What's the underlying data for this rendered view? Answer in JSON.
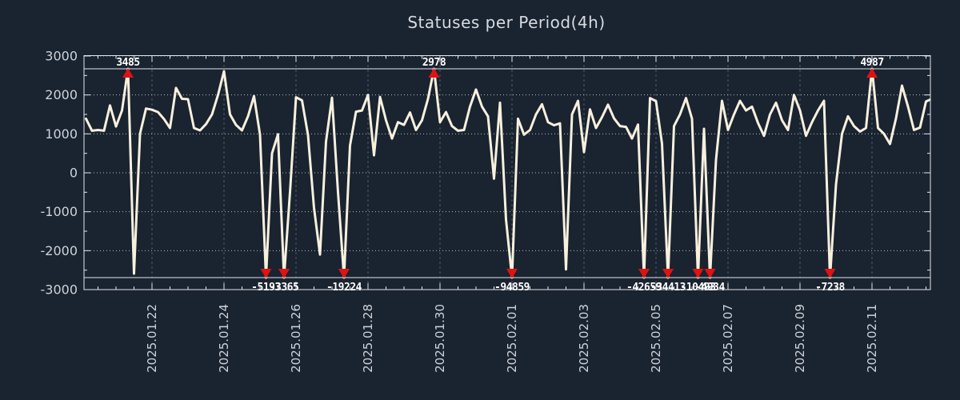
{
  "title": "Statuses per Period(4h)",
  "chart_data": {
    "type": "line",
    "title": "Statuses per Period(4h)",
    "series_name": "statuses",
    "start_time": "2025-01-20T04:00:00",
    "step_hours": 4,
    "values": [
      1390,
      1080,
      1100,
      1080,
      1730,
      1190,
      1600,
      3485,
      -2590,
      1000,
      1650,
      1620,
      1560,
      1380,
      1150,
      2180,
      1900,
      1890,
      1150,
      1090,
      1250,
      1500,
      2000,
      2610,
      1500,
      1230,
      1090,
      1450,
      1970,
      980,
      -5193,
      500,
      990,
      -3365,
      -500,
      1940,
      1860,
      970,
      -900,
      -2100,
      800,
      1930,
      -500,
      -19224,
      700,
      1570,
      1600,
      2000,
      450,
      1950,
      1350,
      880,
      1300,
      1230,
      1550,
      1100,
      1350,
      1900,
      2978,
      1300,
      1560,
      1200,
      1080,
      1100,
      1700,
      2140,
      1700,
      1450,
      -150,
      1800,
      -1200,
      -94859,
      1390,
      980,
      1100,
      1500,
      1760,
      1300,
      1220,
      1270,
      -2480,
      1500,
      1850,
      530,
      1630,
      1150,
      1430,
      1750,
      1400,
      1200,
      1180,
      880,
      1240,
      -42659,
      1920,
      1840,
      750,
      -34413,
      1200,
      1500,
      1920,
      1390,
      -10493,
      1130,
      -4934,
      330,
      1850,
      1100,
      1500,
      1850,
      1600,
      1700,
      1280,
      950,
      1500,
      1800,
      1350,
      1100,
      2000,
      1600,
      950,
      1300,
      1600,
      1850,
      -7238,
      -300,
      1000,
      1450,
      1200,
      1060,
      1150,
      4987,
      1150,
      1000,
      740,
      1400,
      2240,
      1700,
      1100,
      1160,
      1830,
      1900
    ],
    "ylim": [
      -3000,
      3000
    ],
    "y_ticks": [
      "3000",
      "2000",
      "1000",
      "0",
      "-1000",
      "-2000",
      "-3000"
    ],
    "x_tick_labels": [
      "2025.01.22",
      "2025.01.24",
      "2025.01.26",
      "2025.01.28",
      "2025.01.30",
      "2025.02.01",
      "2025.02.03",
      "2025.02.05",
      "2025.02.07",
      "2025.02.09",
      "2025.02.11"
    ],
    "clip_max": 2672,
    "clip_min": -2692,
    "peak_annotations": [
      {
        "index": 7,
        "label": "3485"
      },
      {
        "index": 58,
        "label": "2978"
      },
      {
        "index": 131,
        "label": "4987"
      }
    ],
    "trough_annotations": [
      {
        "index": 30,
        "label": "-5193"
      },
      {
        "index": 33,
        "label": "-3365"
      },
      {
        "index": 43,
        "label": "-19224"
      },
      {
        "index": 71,
        "label": "-94859"
      },
      {
        "index": 93,
        "label": "-42659"
      },
      {
        "index": 97,
        "label": "-34413"
      },
      {
        "index": 102,
        "label": "-10493"
      },
      {
        "index": 104,
        "label": "-4934"
      },
      {
        "index": 124,
        "label": "-7238"
      }
    ],
    "grid": "on",
    "legend": "none",
    "colors": {
      "background": "#1a2330",
      "line": "#f7f0dd",
      "marker": "#e01212",
      "border": "#e2e6ea",
      "grid_h": "#e8edf2",
      "grid_v": "#9aa6b4",
      "annotation_text": "#ffffff",
      "tick_text": "#cdd3da",
      "title_text": "#d6dbe1"
    }
  }
}
